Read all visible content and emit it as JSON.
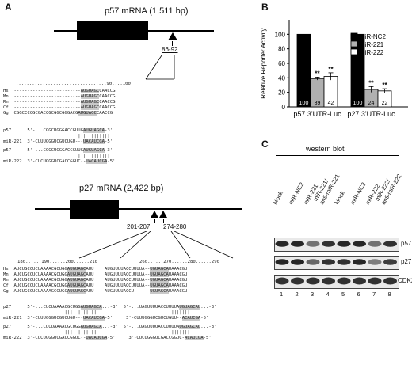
{
  "panel_labels": {
    "a": "A",
    "b": "B",
    "c": "C"
  },
  "panel_a": {
    "p57": {
      "title": "p57 mRNA (1,511 bp)",
      "site": "86-92",
      "ruler_left": "..................................",
      "ruler_mid": "90",
      "ruler_right": "....100",
      "species": [
        "Hs",
        "Mn",
        "Rn",
        "Cf",
        "Gg"
      ],
      "species_pre": [
        "-------------------------",
        "-------------------------",
        "-------------------------",
        "-------------------------",
        "CGGCCCCGCGACCGCGGCGGGACG"
      ],
      "species_seed": [
        "AUGUAGC",
        "AUGUAGC",
        "AUGUAGC",
        "AUGUAGC",
        "AUGUAGC"
      ],
      "species_post": [
        "CAACCG",
        "CAACCG",
        "CAACCG",
        "CAACCG",
        "CAACCG"
      ],
      "duplex": [
        {
          "name": "p57",
          "pre": "5'-...CGGCUGGGACCGUUG",
          "seed": "AUGUAGCA",
          "post": "-3'"
        },
        {
          "name": "",
          "pre": "                   |||  ",
          "seed": "|||||||",
          "post": ""
        },
        {
          "name": "miR-221",
          "pre": "3'-CUUUGGGUCGUCUGU---",
          "seed": "UACAUCGA",
          "post": "-5'"
        },
        {
          "name": "p57",
          "pre": "5'-...CGGCUGGGACCGUUG",
          "seed": "AUGUAGCA",
          "post": "-3'"
        },
        {
          "name": "",
          "pre": "                   |||  ",
          "seed": "|||||||",
          "post": ""
        },
        {
          "name": "miR-222",
          "pre": "3'-CUCUGGGUCGACCGGUC--",
          "seed": "UACAUCGA",
          "post": "-5'"
        }
      ]
    },
    "p27": {
      "title": "p27 mRNA (2,422 bp)",
      "site1": "201-207",
      "site2": "274-280",
      "ruler1": "180......190......200......210",
      "ruler2": "260......270......280......290",
      "species": [
        "Hs",
        "Mn",
        "Rn",
        "Cf",
        "Gg"
      ],
      "block1_pre": [
        "AUCUGCCUCUAAAACGCUGG",
        "AUCUGCCUCUAAAACGCUGG",
        "AUCUGCCUCUAAAACGCUGG",
        "AUCUGCCUCUAAAACGCUGG",
        "AUCUGCCUCUAAAAGCGUGG"
      ],
      "block1_seed": [
        "AUGUAGC",
        "AUGUAGC",
        "AUGUAGC",
        "AUGUAGC",
        "AUGUAGC"
      ],
      "block1_post": [
        "AUU",
        "AUU",
        "AUU",
        "AUU",
        "AUU"
      ],
      "block2_pre": [
        "AUGUUUUACCUUUUA--",
        "AUGUUUUACCUUUUA--",
        "AUGUUUUACCUUUUA--",
        "AUGUUUUACCUUUUA--",
        "AUGUUUUACCU---"
      ],
      "block2_seed": [
        "UGUAGCA",
        "UGUAGCA",
        "UGUAGCA",
        "UGUAGCA",
        "UGUAGCA"
      ],
      "block2_post": [
        "UAAACGU",
        "UAAACGU",
        "UAAACGU",
        "UAAACGU",
        "UAAACGU"
      ],
      "duplex": [
        {
          "name": "p27",
          "pre": "5'-...CUCUAAAACGCUGG",
          "seed": "AUGUAGCA",
          "post": "...-3'",
          "pre2": "5'-...UAGUUUUACCUUUUA",
          "seed2": "UGUAGCAU",
          "post2": "...-3'"
        },
        {
          "name": "",
          "pre": "              |||  ",
          "seed": "|||||||",
          "post": "",
          "pre2": "                 ",
          "seed2": "|||||||",
          "post2": ""
        },
        {
          "name": "miR-221",
          "pre": "3'-CUUUGGGUCGUCUGU---",
          "seed": "UACAUCGA",
          "post": "-5'",
          "pre2": "3'-CUUUGGGUCGUCUGUU--",
          "seed2": "ACAUCGA",
          "post2": "-5'"
        },
        {
          "name": "p27",
          "pre": "5'-...CUCUAAAACGCUGG",
          "seed": "AUGUAGCA",
          "post": "...-3'",
          "pre2": "5'-...UAGUUUUACCUUUUA",
          "seed2": "UGUAGCAU",
          "post2": "...-3'"
        },
        {
          "name": "",
          "pre": "              |||  ",
          "seed": "|||||||",
          "post": "",
          "pre2": "                 ",
          "seed2": "|||||||",
          "post2": ""
        },
        {
          "name": "miR-222",
          "pre": "3'-CUCUGGGUCGACCGGUC--",
          "seed": "UACAUCGA",
          "post": "-5'",
          "pre2": "3'-CUCUGGGUCGACCGGUC-",
          "seed2": "ACAUCGA",
          "post2": "-5'"
        }
      ]
    }
  },
  "chart_data": {
    "type": "bar",
    "ylabel": "Relative Reporter Activity",
    "ylim": [
      0,
      120
    ],
    "yticks": [
      0,
      20,
      40,
      60,
      80,
      100
    ],
    "groups": [
      "p57 3'UTR-Luc",
      "p27 3'UTR-Luc"
    ],
    "legend": [
      "miR-NC2",
      "miR-221",
      "miR-222"
    ],
    "legend_position": "top-right",
    "series": [
      {
        "name": "miR-NC2",
        "values": [
          100,
          100
        ],
        "color": "#000000",
        "errors": [
          0,
          0
        ]
      },
      {
        "name": "miR-221",
        "values": [
          39,
          24
        ],
        "color": "#b0b0b0",
        "errors": [
          2,
          4
        ]
      },
      {
        "name": "miR-222",
        "values": [
          42,
          22
        ],
        "color": "#ffffff",
        "errors": [
          5,
          3
        ]
      }
    ],
    "value_labels": [
      [
        "100",
        "39",
        "42"
      ],
      [
        "100",
        "24",
        "22"
      ]
    ],
    "significance": [
      [
        "",
        "**",
        "**"
      ],
      [
        "",
        "**",
        "**"
      ]
    ]
  },
  "panel_c": {
    "header": "western blot",
    "lanes": [
      "Mock",
      "miR-NC2",
      "miR-221",
      "miR-221/ anti-miR-221",
      "Mock",
      "miR-NC2",
      "miR-222",
      "miR-222/ anti-miR-222"
    ],
    "lane_numbers": [
      "1",
      "2",
      "3",
      "4",
      "5",
      "6",
      "7",
      "8"
    ],
    "rows": [
      "p57",
      "p27",
      "CDK2"
    ]
  }
}
